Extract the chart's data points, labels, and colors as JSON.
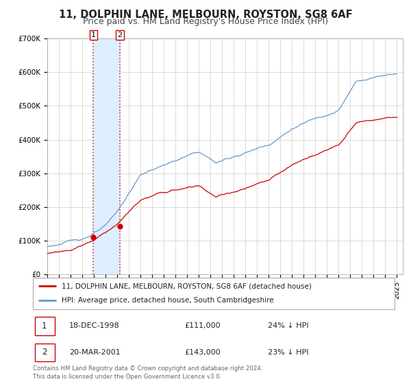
{
  "title": "11, DOLPHIN LANE, MELBOURN, ROYSTON, SG8 6AF",
  "subtitle": "Price paid vs. HM Land Registry's House Price Index (HPI)",
  "ylim": [
    0,
    700000
  ],
  "yticks": [
    0,
    100000,
    200000,
    300000,
    400000,
    500000,
    600000,
    700000
  ],
  "ytick_labels": [
    "£0",
    "£100K",
    "£200K",
    "£300K",
    "£400K",
    "£500K",
    "£600K",
    "£700K"
  ],
  "xlim_start": 1995.0,
  "xlim_end": 2025.5,
  "sale1_date": 1998.96,
  "sale1_price": 111000,
  "sale1_label": "1",
  "sale1_text": "18-DEC-1998",
  "sale1_value_text": "£111,000",
  "sale1_hpi_text": "24% ↓ HPI",
  "sale2_date": 2001.22,
  "sale2_price": 143000,
  "sale2_label": "2",
  "sale2_text": "20-MAR-2001",
  "sale2_value_text": "£143,000",
  "sale2_hpi_text": "23% ↓ HPI",
  "property_color": "#cc0000",
  "hpi_color": "#6699cc",
  "shading_color": "#ddeeff",
  "vline_color": "#cc3333",
  "legend_property": "11, DOLPHIN LANE, MELBOURN, ROYSTON, SG8 6AF (detached house)",
  "legend_hpi": "HPI: Average price, detached house, South Cambridgeshire",
  "footer1": "Contains HM Land Registry data © Crown copyright and database right 2024.",
  "footer2": "This data is licensed under the Open Government Licence v3.0.",
  "background_color": "#ffffff",
  "grid_color": "#cccccc",
  "title_fontsize": 10.5,
  "subtitle_fontsize": 9,
  "tick_fontsize": 7.5,
  "legend_fontsize": 7.5
}
